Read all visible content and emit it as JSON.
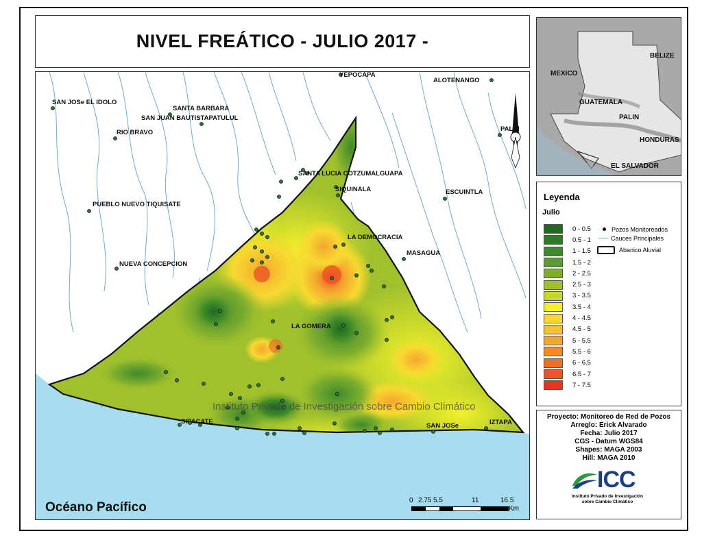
{
  "title": "NIVEL FREÁTICO - JULIO 2017 -",
  "map": {
    "ocean_label": "Océano Pacífico",
    "watermark": "Instituto Privado de Investigación sobre Cambio Climático",
    "north_arrow": "north-arrow-icon",
    "colors": {
      "ocean": "#a8dcef",
      "land": "#ffffff",
      "river": "#6fa8d6",
      "boundary": "#111111"
    },
    "places": [
      {
        "id": "yepocapa",
        "name": "YEPOCAPA"
      },
      {
        "id": "alotenango",
        "name": "ALOTENANGO"
      },
      {
        "id": "san-jose-el-idolo",
        "name": "SAN JOSe EL IDOLO"
      },
      {
        "id": "santa-barbara",
        "name": "SANTA BARBARA"
      },
      {
        "id": "san-juan",
        "name": "SAN JUAN BAUTISTAPATULUL"
      },
      {
        "id": "rio-bravo",
        "name": "RIO BRAVO"
      },
      {
        "id": "palin",
        "name": "PALIN"
      },
      {
        "id": "santa-lucia",
        "name": "SANTA LUCIA COTZUMALGUAPA"
      },
      {
        "id": "siquinala",
        "name": "SIQUINALA"
      },
      {
        "id": "escuintla",
        "name": "ESCUINTLA"
      },
      {
        "id": "pueblo-nuevo",
        "name": "PUEBLO NUEVO TIQUISATE"
      },
      {
        "id": "la-democracia",
        "name": "LA DEMOCRACIA"
      },
      {
        "id": "masagua",
        "name": "MASAGUA"
      },
      {
        "id": "nueva-concepcion",
        "name": "NUEVA CONCEPCION"
      },
      {
        "id": "la-gomera",
        "name": "LA GOMERA"
      },
      {
        "id": "sipacate",
        "name": "SIPACATE"
      },
      {
        "id": "san-jose",
        "name": "SAN JOSe"
      },
      {
        "id": "iztapa",
        "name": "IZTAPA"
      }
    ],
    "scale": {
      "ticks": [
        "0",
        "2.75",
        "5.5",
        "11",
        "16.5"
      ],
      "unit": "Km"
    }
  },
  "inset": {
    "labels": [
      "BELIZE",
      "MEXICO",
      "GUATEMALA",
      "PALIN",
      "HONDURAS",
      "EL SALVADOR"
    ]
  },
  "legend": {
    "title": "Leyenda",
    "subtitle": "Julio",
    "classes": [
      {
        "label": "0 - 0.5",
        "color": "#1f6a1f"
      },
      {
        "label": "0.5 - 1",
        "color": "#2f7a25"
      },
      {
        "label": "1 - 1.5",
        "color": "#3f8a2a"
      },
      {
        "label": "1.5 - 2",
        "color": "#5d9c2e"
      },
      {
        "label": "2 - 2.5",
        "color": "#7fae2e"
      },
      {
        "label": "2.5 - 3",
        "color": "#a1c12c"
      },
      {
        "label": "3 - 3.5",
        "color": "#c6d62a"
      },
      {
        "label": "3.5 - 4",
        "color": "#f1f02a"
      },
      {
        "label": "4 - 4.5",
        "color": "#f8d930"
      },
      {
        "label": "4.5 - 5",
        "color": "#f6c232"
      },
      {
        "label": "5 - 5.5",
        "color": "#f4a72e"
      },
      {
        "label": "5.5 - 6",
        "color": "#f28c2a"
      },
      {
        "label": "6 - 6.5",
        "color": "#ef6e26"
      },
      {
        "label": "6.5 - 7",
        "color": "#ec5424"
      },
      {
        "label": "7 - 7.5",
        "color": "#e83222"
      }
    ],
    "symbols": {
      "wells": "Pozos Monitoreados",
      "rivers": "Cauces Principales",
      "fan": "Abanico Aluvial"
    }
  },
  "info": {
    "lines": [
      "Proyecto: Monitoreo de Red de Pozos",
      "Arreglo: Erick Alvarado",
      "Fecha: Julio 2017",
      "CGS - Datum WGS84",
      "Shapes: MAGA 2003",
      "Hill: MAGA 2010"
    ],
    "logo_name": "ICC",
    "logo_line1": "Instituto Privado de Investigación",
    "logo_line2": "sobre Cambio Climático"
  }
}
